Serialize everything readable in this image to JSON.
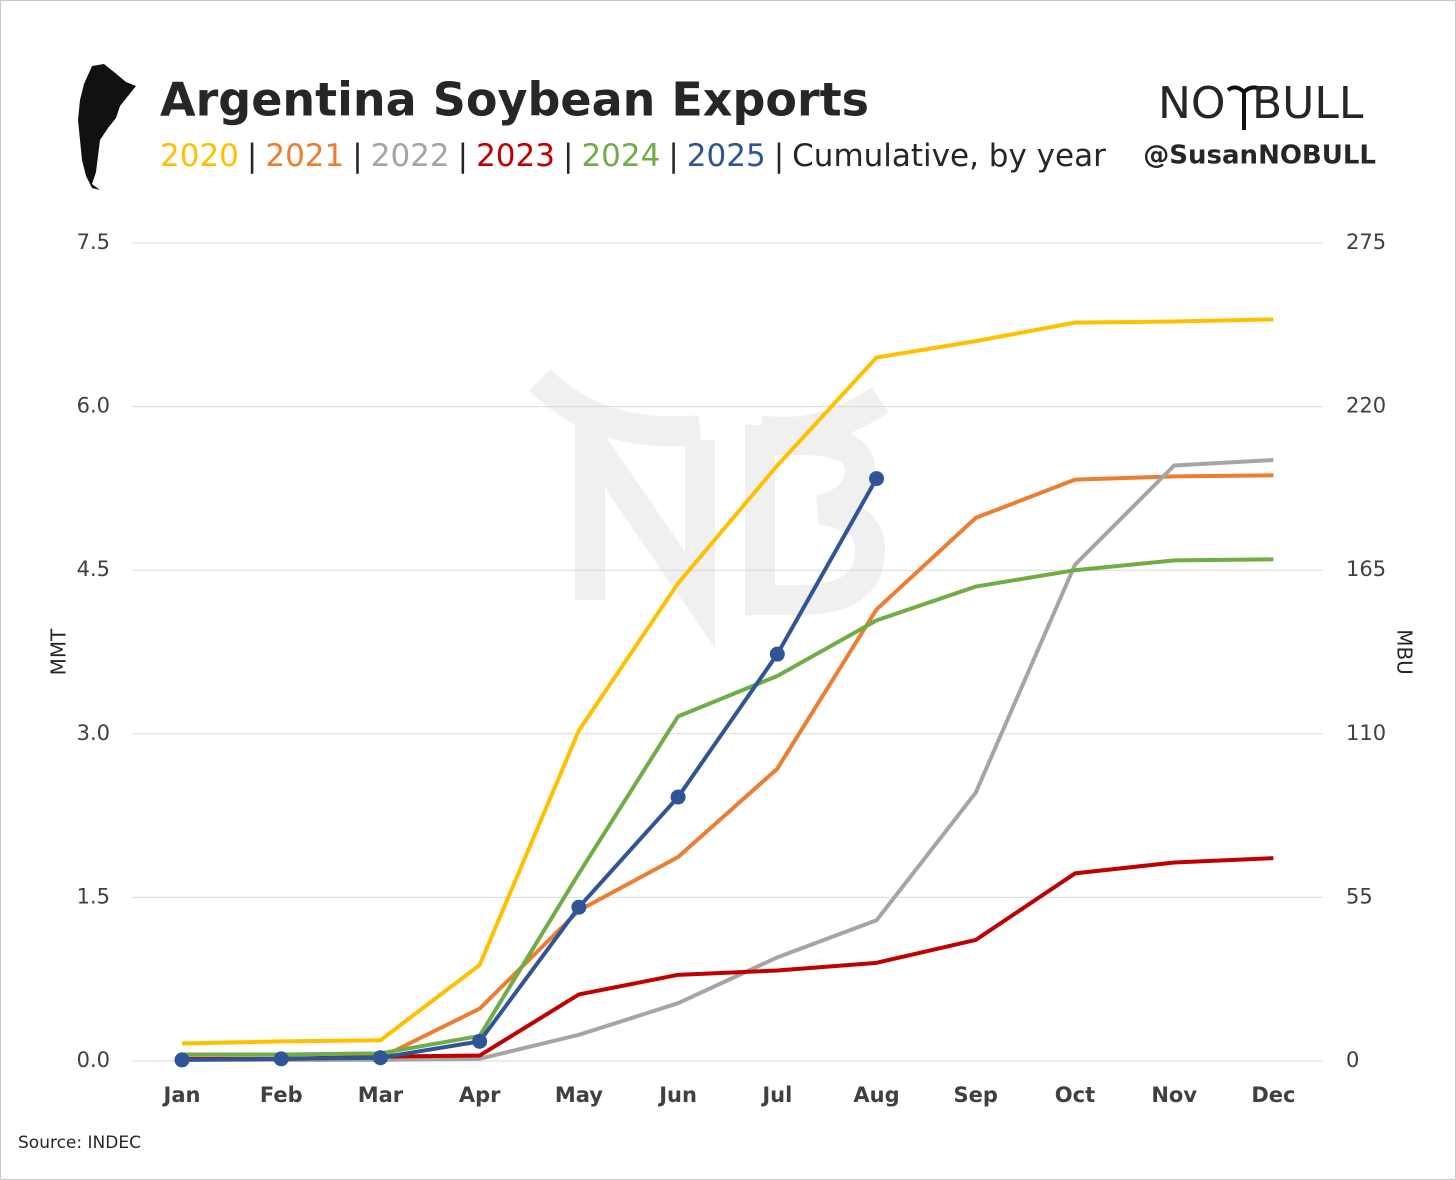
{
  "chart_data": {
    "type": "line",
    "title": "Argentina Soybean Exports",
    "subtitle_separator": "|",
    "subtitle": "Cumulative, by year",
    "brand": [
      "NO",
      "BULL"
    ],
    "handle": "@SusanNOBULL",
    "source": "Source: INDEC",
    "ylabel": "MMT",
    "y2label": "MBU",
    "categories": [
      "Jan",
      "Feb",
      "Mar",
      "Apr",
      "May",
      "Jun",
      "Jul",
      "Aug",
      "Sep",
      "Oct",
      "Nov",
      "Dec"
    ],
    "ylim": [
      0,
      7.5
    ],
    "yticks": [
      {
        "value": 0,
        "label": "0.0"
      },
      1.5,
      {
        "value": 3,
        "label": "3.0"
      },
      4.5,
      {
        "value": 6,
        "label": "6.0"
      },
      7.5
    ],
    "y2lim": [
      0,
      275
    ],
    "y2ticks": [
      0,
      55,
      110,
      165,
      220,
      275
    ],
    "grid": true,
    "series": [
      {
        "name": "2020",
        "color": "#ffc000",
        "values": [
          0.16,
          0.18,
          0.19,
          0.88,
          3.03,
          4.38,
          5.46,
          6.45,
          6.6,
          6.77,
          6.78,
          6.8
        ]
      },
      {
        "name": "2021",
        "color": "#ed7d31",
        "values": [
          0.02,
          0.02,
          0.03,
          0.48,
          1.38,
          1.87,
          2.68,
          4.14,
          4.98,
          5.33,
          5.36,
          5.37
        ]
      },
      {
        "name": "2022",
        "color": "#a5a5a5",
        "values": [
          0.01,
          0.01,
          0.01,
          0.02,
          0.24,
          0.53,
          0.95,
          1.29,
          2.46,
          4.55,
          5.46,
          5.51
        ]
      },
      {
        "name": "2023",
        "color": "#c00000",
        "values": [
          0.02,
          0.02,
          0.04,
          0.05,
          0.61,
          0.79,
          0.83,
          0.9,
          1.11,
          1.72,
          1.82,
          1.86
        ]
      },
      {
        "name": "2024",
        "color": "#70ad47",
        "values": [
          0.06,
          0.06,
          0.07,
          0.23,
          1.72,
          3.16,
          3.53,
          4.04,
          4.35,
          4.5,
          4.59,
          4.6
        ]
      },
      {
        "name": "2025",
        "color": "#2f5597",
        "markers": true,
        "values": [
          0.01,
          0.02,
          0.03,
          0.18,
          1.41,
          2.42,
          3.73,
          5.34,
          null,
          null,
          null,
          null
        ]
      }
    ]
  }
}
